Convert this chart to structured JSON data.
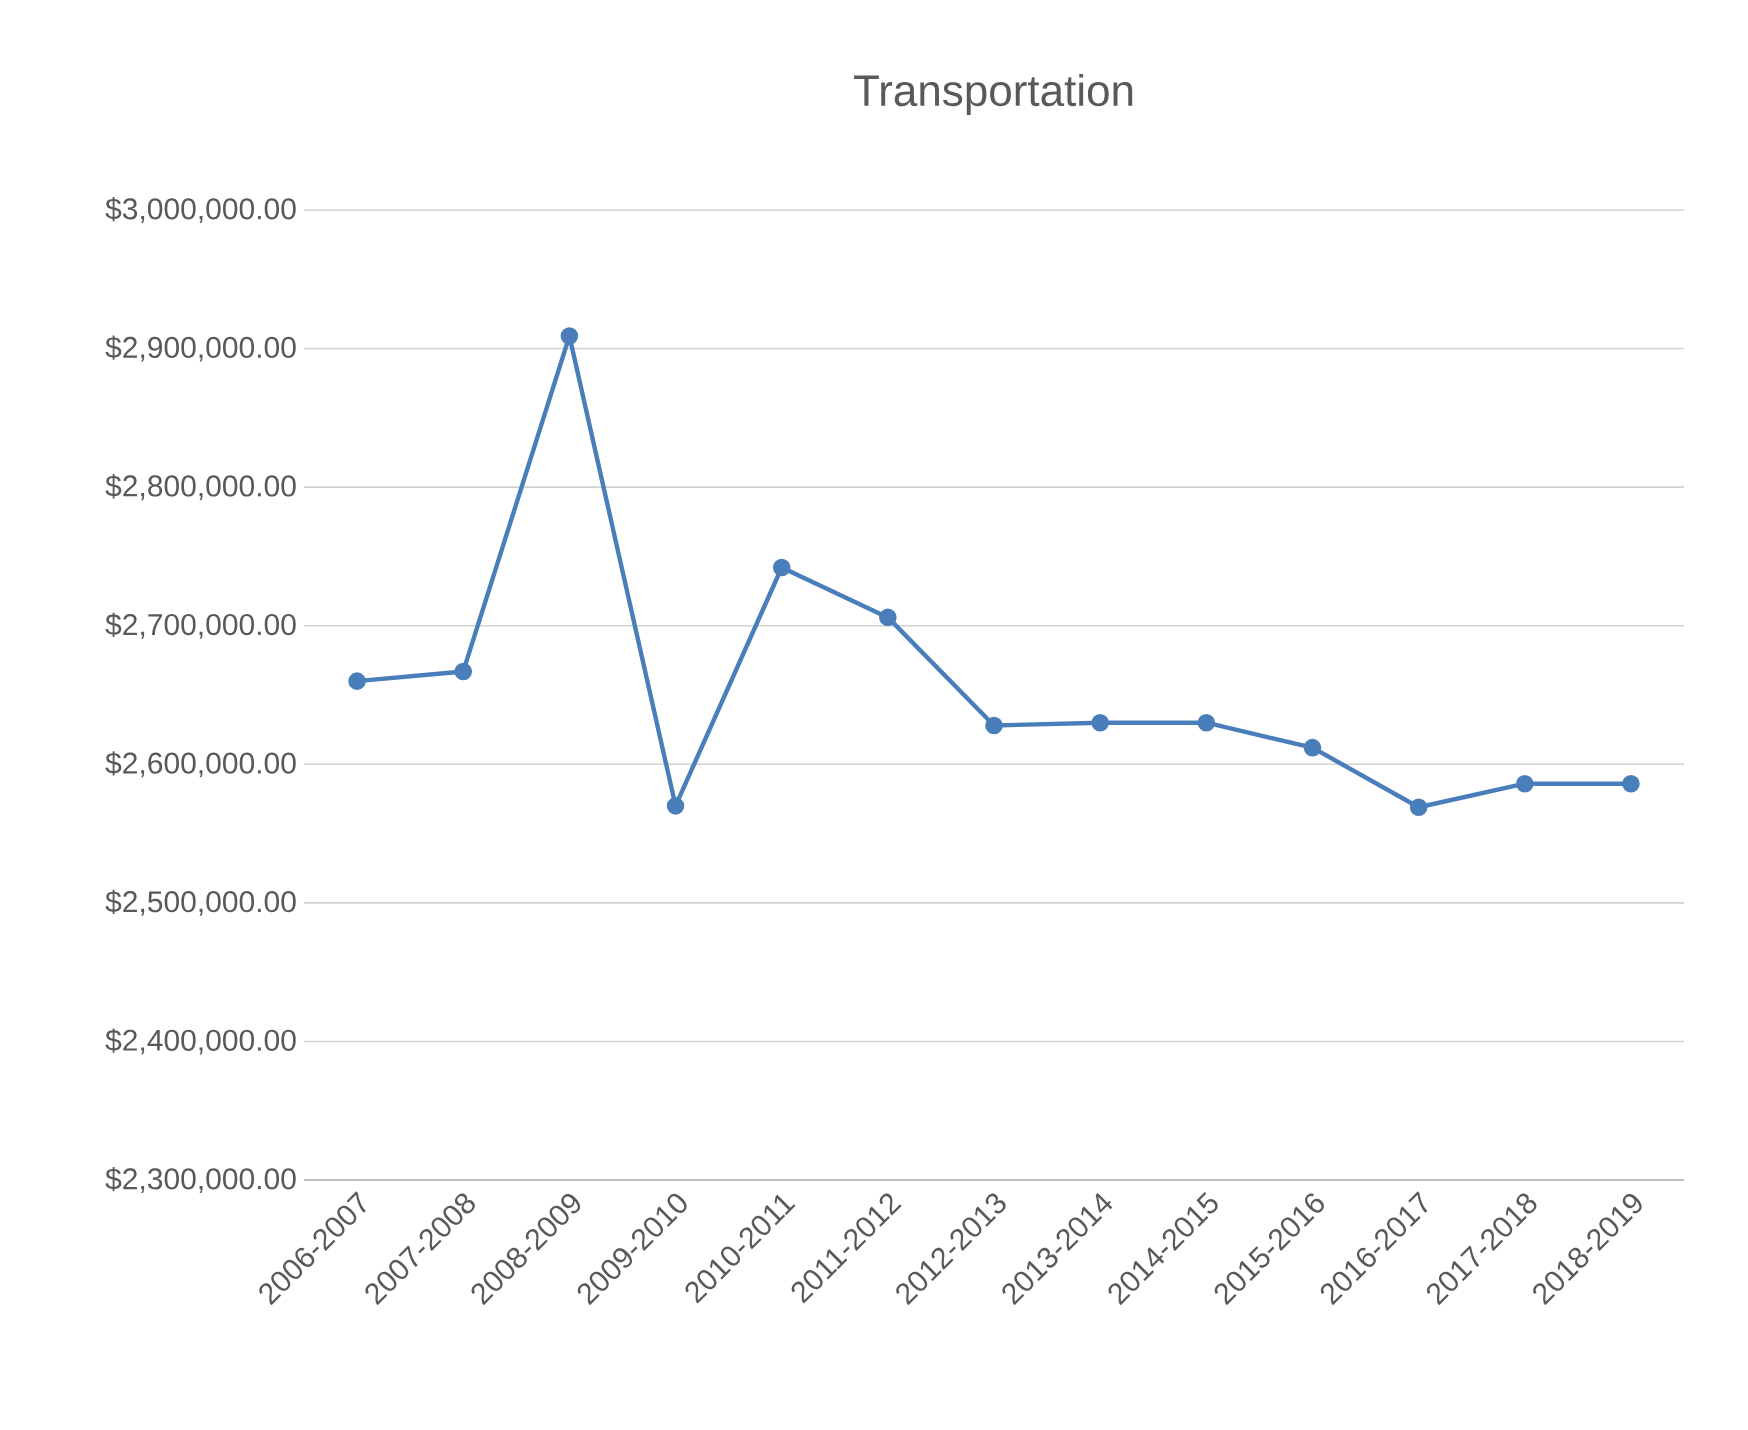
{
  "chart_data": {
    "type": "line",
    "title": "Transportation",
    "categories": [
      "2006-2007",
      "2007-2008",
      "2008-2009",
      "2009-2010",
      "2010-2011",
      "2011-2012",
      "2012-2013",
      "2013-2014",
      "2014-2015",
      "2015-2016",
      "2016-2017",
      "2017-2018",
      "2018-2019"
    ],
    "series": [
      {
        "color": "#4a7ebb",
        "values": [
          2660000,
          2667000,
          2909000,
          2570000,
          2742000,
          2706000,
          2628000,
          2630000,
          2630000,
          2612000,
          2569000,
          2586000,
          2586000
        ]
      }
    ],
    "ylim": [
      2300000,
      3000000
    ],
    "yticks": [
      {
        "value": 2300000,
        "label": "$2,300,000.00"
      },
      {
        "value": 2400000,
        "label": "$2,400,000.00"
      },
      {
        "value": 2500000,
        "label": "$2,500,000.00"
      },
      {
        "value": 2600000,
        "label": "$2,600,000.00"
      },
      {
        "value": 2700000,
        "label": "$2,700,000.00"
      },
      {
        "value": 2800000,
        "label": "$2,800,000.00"
      },
      {
        "value": 2900000,
        "label": "$2,900,000.00"
      },
      {
        "value": 3000000,
        "label": "$3,000,000.00"
      }
    ],
    "grid": "y",
    "marker": "circle",
    "line_style": "solid"
  }
}
